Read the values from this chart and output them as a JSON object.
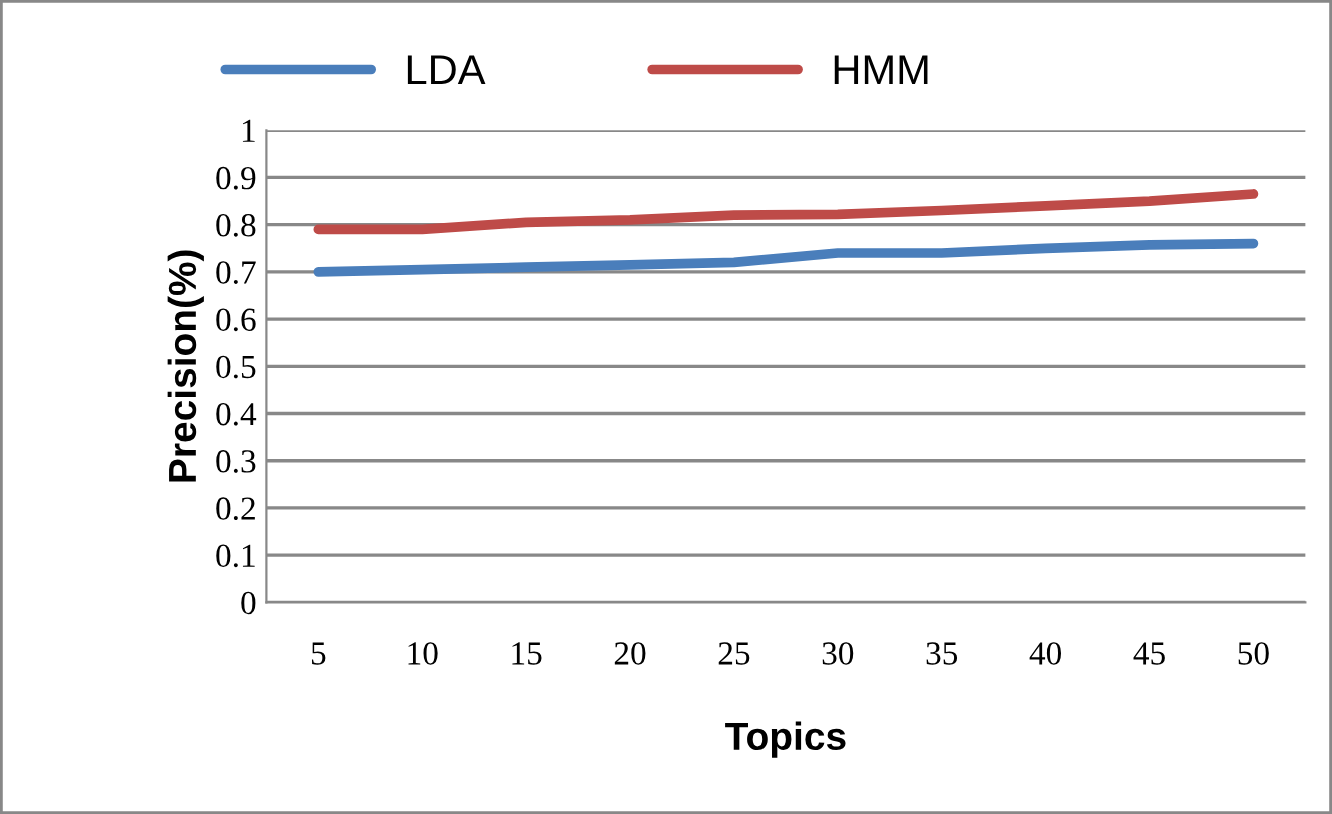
{
  "chart_data": {
    "type": "line",
    "xlabel": "Topics",
    "ylabel": "Precision(%)",
    "categories": [
      "5",
      "10",
      "15",
      "20",
      "25",
      "30",
      "35",
      "40",
      "45",
      "50"
    ],
    "series": [
      {
        "name": "LDA",
        "color": "#4a7ebb",
        "values": [
          0.7,
          0.705,
          0.71,
          0.715,
          0.72,
          0.74,
          0.74,
          0.75,
          0.757,
          0.76
        ]
      },
      {
        "name": "HMM",
        "color": "#be4b48",
        "values": [
          0.79,
          0.79,
          0.805,
          0.81,
          0.82,
          0.822,
          0.83,
          0.84,
          0.85,
          0.865
        ]
      }
    ],
    "ylim": [
      0,
      1
    ],
    "yticks": [
      0,
      0.1,
      0.2,
      0.3,
      0.4,
      0.5,
      0.6,
      0.7,
      0.8,
      0.9,
      1
    ],
    "grid": "y",
    "legend": "top",
    "marker": "none",
    "line_style": "solid"
  }
}
